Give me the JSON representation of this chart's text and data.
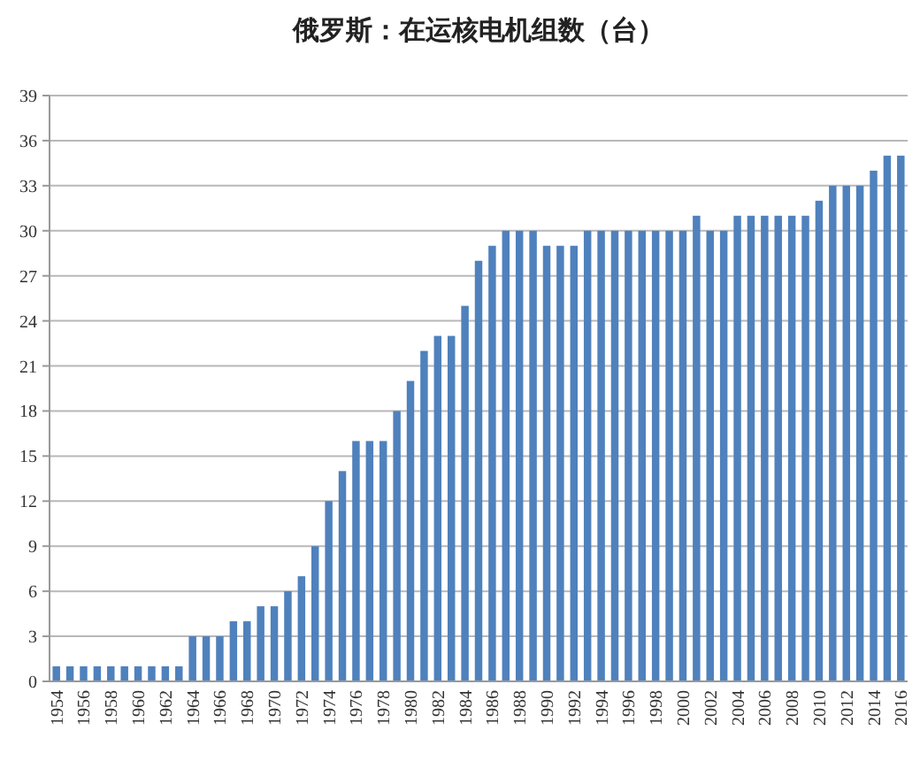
{
  "chart_data": {
    "type": "bar",
    "title": "俄罗斯：在运核电机组数（台）",
    "categories": [
      "1954",
      null,
      "1956",
      null,
      "1958",
      null,
      "1960",
      null,
      "1962",
      null,
      "1964",
      null,
      "1966",
      null,
      "1968",
      null,
      "1970",
      null,
      "1972",
      null,
      "1974",
      null,
      "1976",
      null,
      "1978",
      null,
      "1980",
      null,
      "1982",
      null,
      "1984",
      null,
      "1986",
      null,
      "1988",
      null,
      "1990",
      null,
      "1992",
      null,
      "1994",
      null,
      "1996",
      null,
      "1998",
      null,
      "2000",
      null,
      "2002",
      null,
      "2004",
      null,
      "2006",
      null,
      "2008",
      null,
      "2010",
      null,
      "2012",
      null,
      "2014",
      null,
      "2016"
    ],
    "values": [
      1,
      1,
      1,
      1,
      1,
      1,
      1,
      1,
      1,
      1,
      3,
      3,
      3,
      4,
      4,
      5,
      5,
      6,
      7,
      9,
      12,
      14,
      16,
      16,
      16,
      18,
      20,
      22,
      23,
      23,
      25,
      28,
      29,
      30,
      30,
      30,
      29,
      29,
      29,
      30,
      30,
      30,
      30,
      30,
      30,
      30,
      30,
      31,
      30,
      30,
      31,
      31,
      31,
      31,
      31,
      31,
      32,
      33,
      33,
      33,
      34,
      35,
      35
    ],
    "color": "#4f81bd",
    "ylim": [
      0,
      39
    ],
    "yticks": [
      0,
      3,
      6,
      9,
      12,
      15,
      18,
      21,
      24,
      27,
      30,
      33,
      36,
      39
    ],
    "grid": "y"
  }
}
